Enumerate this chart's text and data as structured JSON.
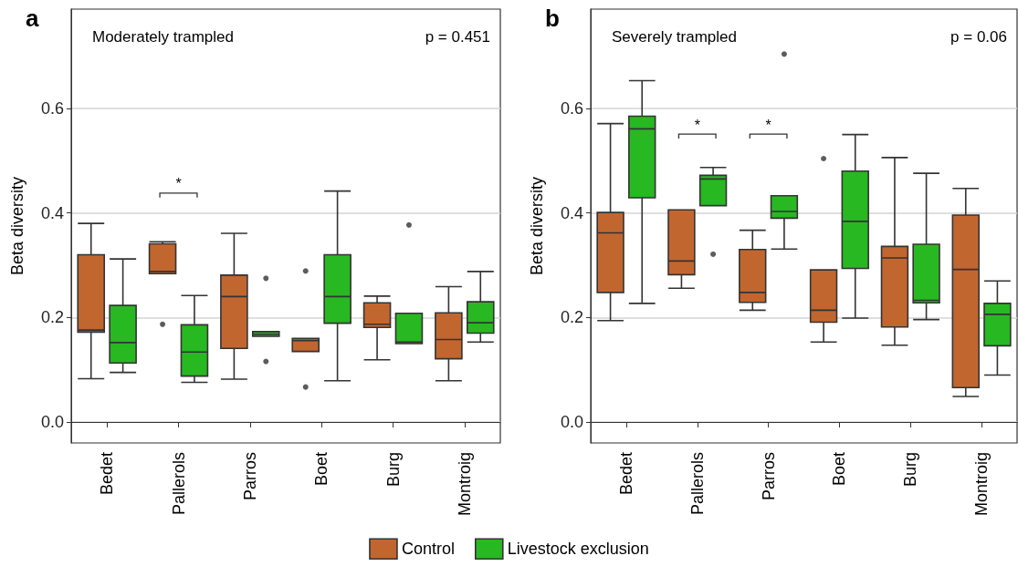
{
  "chart_data": [
    {
      "type": "box",
      "title": "a",
      "subtitle": "Moderately trampled",
      "ylabel": "Beta diversity",
      "categories": [
        "Bedet",
        "Pallerols",
        "Parros",
        "Boet",
        "Burg",
        "Montroig"
      ],
      "ylim": [
        -0.04,
        0.79
      ],
      "yticks": [
        {
          "value": 0,
          "label": "0.0"
        },
        0.2,
        0.4,
        0.6
      ],
      "grid": "y",
      "legend": false,
      "annotations": [
        "p = 0.451",
        "*"
      ],
      "series": [
        {
          "color": "#c2662f",
          "boxes": [
            {
              "low": 0.083,
              "q1": 0.172,
              "median": 0.176,
              "q3": 0.32,
              "high": 0.38
            },
            {
              "low": 0.284,
              "q1": 0.284,
              "median": 0.288,
              "q3": 0.341,
              "high": 0.345,
              "outliers": [
                0.187
              ]
            },
            {
              "low": 0.082,
              "q1": 0.141,
              "median": 0.24,
              "q3": 0.281,
              "high": 0.361
            },
            {
              "low": 0.135,
              "q1": 0.135,
              "median": 0.156,
              "q3": 0.16,
              "high": 0.16,
              "outliers": [
                0.289,
                0.067
              ]
            },
            {
              "low": 0.119,
              "q1": 0.181,
              "median": 0.187,
              "q3": 0.228,
              "high": 0.241
            },
            {
              "low": 0.079,
              "q1": 0.121,
              "median": 0.158,
              "q3": 0.209,
              "high": 0.259
            }
          ]
        },
        {
          "color": "#28b821",
          "boxes": [
            {
              "low": 0.095,
              "q1": 0.113,
              "median": 0.152,
              "q3": 0.223,
              "high": 0.312
            },
            {
              "low": 0.076,
              "q1": 0.088,
              "median": 0.134,
              "q3": 0.186,
              "high": 0.242
            },
            {
              "low": 0.164,
              "q1": 0.164,
              "median": 0.168,
              "q3": 0.173,
              "high": 0.173,
              "outliers": [
                0.275,
                0.116
              ]
            },
            {
              "low": 0.079,
              "q1": 0.189,
              "median": 0.24,
              "q3": 0.32,
              "high": 0.442
            },
            {
              "low": 0.15,
              "q1": 0.15,
              "median": 0.153,
              "q3": 0.208,
              "high": 0.208,
              "outliers": [
                0.377
              ]
            },
            {
              "low": 0.153,
              "q1": 0.17,
              "median": 0.19,
              "q3": 0.23,
              "high": 0.288
            }
          ]
        }
      ]
    },
    {
      "type": "box",
      "title": "b",
      "subtitle": "Severely trampled",
      "ylabel": "Beta diversity",
      "categories": [
        "Bedet",
        "Pallerols",
        "Parros",
        "Boet",
        "Burg",
        "Montroig"
      ],
      "ylim": [
        -0.04,
        0.79
      ],
      "yticks": [
        {
          "value": 0,
          "label": "0.0"
        },
        0.2,
        0.4,
        0.6
      ],
      "grid": "y",
      "legend": "bottom",
      "annotations": [
        "p = 0.06",
        "*",
        "*"
      ],
      "series": [
        {
          "name": "Control",
          "color": "#c2662f",
          "boxes": [
            {
              "low": 0.194,
              "q1": 0.248,
              "median": 0.362,
              "q3": 0.401,
              "high": 0.571
            },
            {
              "low": 0.256,
              "q1": 0.282,
              "median": 0.308,
              "q3": 0.406,
              "high": 0.406
            },
            {
              "low": 0.214,
              "q1": 0.229,
              "median": 0.248,
              "q3": 0.33,
              "high": 0.367
            },
            {
              "low": 0.153,
              "q1": 0.191,
              "median": 0.214,
              "q3": 0.291,
              "high": 0.291,
              "outliers": [
                0.504
              ]
            },
            {
              "low": 0.147,
              "q1": 0.182,
              "median": 0.314,
              "q3": 0.336,
              "high": 0.506
            },
            {
              "low": 0.049,
              "q1": 0.066,
              "median": 0.292,
              "q3": 0.396,
              "high": 0.447
            }
          ]
        },
        {
          "name": "Livestock exclusion",
          "color": "#28b821",
          "boxes": [
            {
              "low": 0.227,
              "q1": 0.429,
              "median": 0.561,
              "q3": 0.585,
              "high": 0.653
            },
            {
              "low": 0.414,
              "q1": 0.414,
              "median": 0.465,
              "q3": 0.472,
              "high": 0.487,
              "outliers": [
                0.321
              ]
            },
            {
              "low": 0.331,
              "q1": 0.39,
              "median": 0.403,
              "q3": 0.433,
              "high": 0.433,
              "outliers": [
                0.704
              ]
            },
            {
              "low": 0.199,
              "q1": 0.294,
              "median": 0.384,
              "q3": 0.48,
              "high": 0.55
            },
            {
              "low": 0.196,
              "q1": 0.228,
              "median": 0.233,
              "q3": 0.34,
              "high": 0.476
            },
            {
              "low": 0.09,
              "q1": 0.146,
              "median": 0.206,
              "q3": 0.227,
              "high": 0.27
            }
          ]
        }
      ]
    }
  ]
}
